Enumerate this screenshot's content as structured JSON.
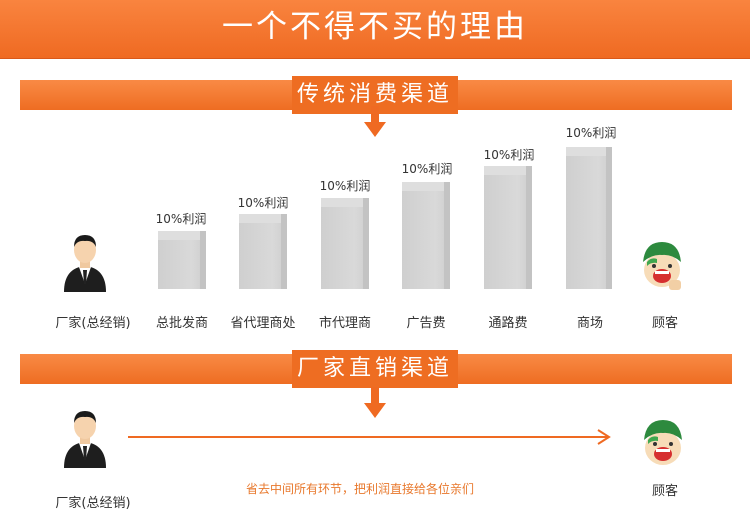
{
  "header": {
    "title": "一个不得不买的理由"
  },
  "traditional": {
    "section_title": "传统消费渠道",
    "manufacturer_label": "厂家(总经销)",
    "customer_label": "顾客",
    "stages": [
      {
        "label": "总批发商",
        "profit": "10%利润"
      },
      {
        "label": "省代理商处",
        "profit": "10%利润"
      },
      {
        "label": "市代理商",
        "profit": "10%利润"
      },
      {
        "label": "广告费",
        "profit": "10%利润"
      },
      {
        "label": "通路费",
        "profit": "10%利润"
      },
      {
        "label": "商场",
        "profit": "10%利润"
      }
    ]
  },
  "direct": {
    "section_title": "厂家直销渠道",
    "manufacturer_label": "厂家(总经销)",
    "customer_label": "顾客",
    "note": "省去中间所有环节，把利润直接给各位亲们"
  },
  "colors": {
    "accent": "#ef6a22",
    "bar": "#d4d4d4"
  },
  "icons": [
    "businessman-icon",
    "customer-icon",
    "down-arrow-icon",
    "right-arrow-icon"
  ]
}
